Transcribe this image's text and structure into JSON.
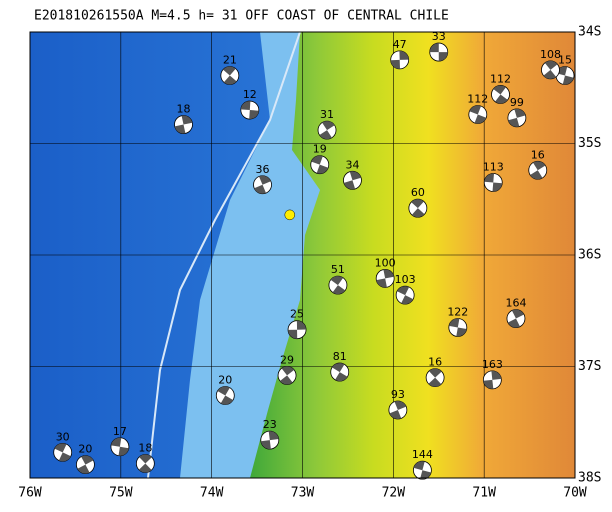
{
  "chart_data": {
    "type": "map",
    "title": "E201810261550A M=4.5 h= 31 OFF COAST OF CENTRAL CHILE",
    "xlim": [
      -76,
      -70
    ],
    "ylim": [
      -38,
      -34
    ],
    "xticks": [
      {
        "value": -76,
        "label": "76W"
      },
      {
        "value": -75,
        "label": "75W"
      },
      {
        "value": -74,
        "label": "74W"
      },
      {
        "value": -73,
        "label": "73W"
      },
      {
        "value": -72,
        "label": "72W"
      },
      {
        "value": -71,
        "label": "71W"
      },
      {
        "value": -70,
        "label": "70W"
      }
    ],
    "yticks": [
      {
        "value": -34,
        "label": "34S"
      },
      {
        "value": -35,
        "label": "35S"
      },
      {
        "value": -36,
        "label": "36S"
      },
      {
        "value": -37,
        "label": "37S"
      },
      {
        "value": -38,
        "label": "38S"
      }
    ],
    "grid": true,
    "epicenter": {
      "lon": -73.14,
      "lat": -35.64,
      "color": "#ffee00"
    },
    "events": {
      "lon": [
        -71.5,
        -70.82,
        -70.64,
        -71.07,
        -70.41,
        -70.9,
        -71.73,
        -72.09,
        -71.87,
        -70.65,
        -71.29,
        -71.54,
        -70.91,
        -72.59,
        -71.95,
        -71.68,
        -73.17,
        -73.06,
        -72.61,
        -72.45,
        -72.81,
        -72.73,
        -73.58,
        -73.8,
        -74.31,
        -75.64,
        -75.39,
        -75.01,
        -74.73,
        -73.36,
        -73.85,
        -73.44,
        -70.11,
        -70.27,
        -71.93
      ],
      "lat": [
        -34.18,
        -34.56,
        -34.77,
        -34.74,
        -35.24,
        -35.35,
        -35.58,
        -36.21,
        -36.36,
        -36.57,
        -36.65,
        -37.1,
        -37.12,
        -37.05,
        -37.39,
        -37.93,
        -37.08,
        -36.67,
        -36.27,
        -35.33,
        -35.19,
        -34.88,
        -34.7,
        -34.39,
        -34.83,
        -37.77,
        -37.88,
        -37.72,
        -37.87,
        -37.66,
        -37.26,
        -35.37,
        -34.39,
        -34.34,
        -34.25
      ],
      "depth": [
        33,
        112,
        99,
        112,
        16,
        113,
        60,
        100,
        103,
        164,
        122,
        16,
        163,
        81,
        93,
        144,
        29,
        25,
        51,
        34,
        19,
        31,
        12,
        21,
        18,
        30,
        20,
        17,
        18,
        23,
        20,
        36,
        15,
        108,
        47
      ]
    }
  }
}
